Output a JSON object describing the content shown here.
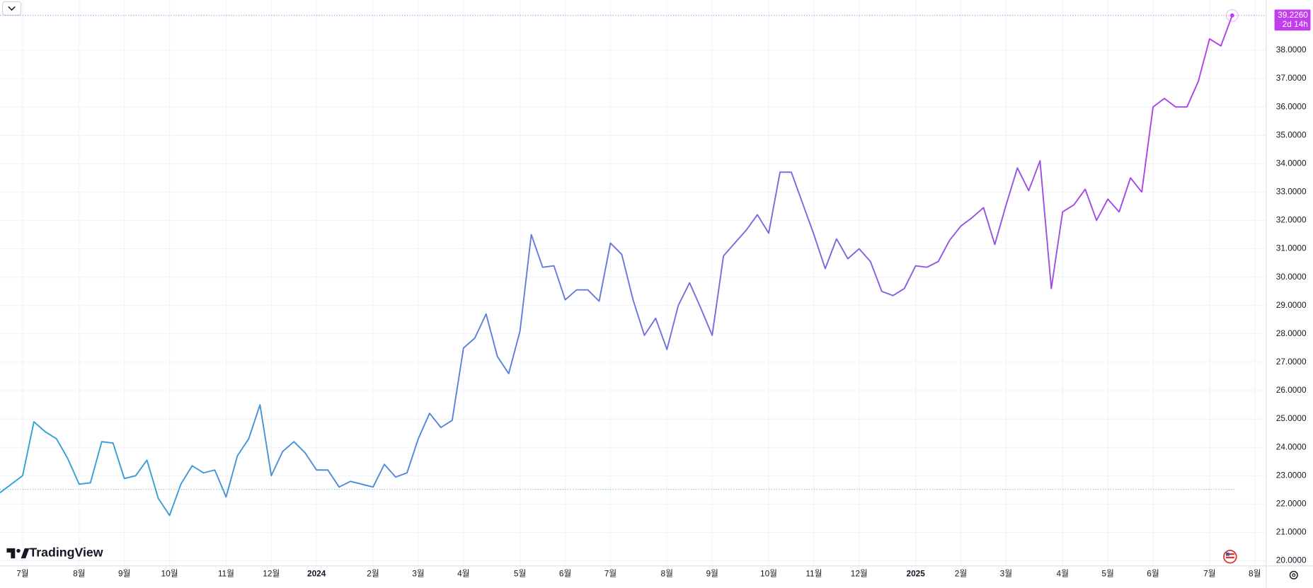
{
  "chart_data": {
    "type": "line",
    "logo": "TradingView",
    "categories": [
      null,
      null,
      "7월",
      null,
      null,
      null,
      null,
      "8월",
      null,
      null,
      null,
      "9월",
      null,
      null,
      null,
      "10월",
      null,
      null,
      null,
      null,
      "11월",
      null,
      null,
      null,
      "12월",
      null,
      null,
      null,
      "2024",
      null,
      null,
      null,
      null,
      "2월",
      null,
      null,
      null,
      "3월",
      null,
      null,
      null,
      "4월",
      null,
      null,
      null,
      null,
      "5월",
      null,
      null,
      null,
      "6월",
      null,
      null,
      null,
      "7월",
      null,
      null,
      null,
      null,
      "8월",
      null,
      null,
      null,
      "9월",
      null,
      null,
      null,
      null,
      "10월",
      null,
      null,
      null,
      "11월",
      null,
      null,
      null,
      "12월",
      null,
      null,
      null,
      null,
      "2025",
      null,
      null,
      null,
      "2월",
      null,
      null,
      null,
      "3월",
      null,
      null,
      null,
      null,
      "4월",
      null,
      null,
      null,
      "5월",
      null,
      null,
      null,
      "6월",
      null,
      null,
      null,
      null,
      "7월",
      null,
      null,
      null,
      "8월"
    ],
    "values": [
      22.4,
      22.7,
      23.0,
      24.9,
      24.55,
      24.3,
      23.6,
      22.7,
      22.75,
      24.2,
      24.15,
      22.9,
      23.0,
      23.55,
      22.2,
      21.6,
      22.7,
      23.35,
      23.1,
      23.2,
      22.25,
      23.7,
      24.3,
      25.5,
      23.0,
      23.85,
      24.2,
      23.8,
      23.2,
      23.2,
      22.6,
      22.8,
      22.7,
      22.6,
      23.4,
      22.95,
      23.1,
      24.3,
      25.2,
      24.7,
      24.95,
      27.5,
      27.85,
      28.7,
      27.2,
      26.6,
      28.1,
      31.5,
      30.35,
      30.4,
      29.2,
      29.55,
      29.55,
      29.15,
      31.2,
      30.8,
      29.2,
      27.95,
      28.55,
      27.45,
      29.0,
      29.8,
      28.9,
      27.95,
      30.75,
      31.2,
      31.65,
      32.2,
      31.55,
      33.7,
      33.7,
      32.6,
      31.5,
      30.3,
      31.35,
      30.65,
      31.0,
      30.55,
      29.5,
      29.35,
      29.6,
      30.4,
      30.35,
      30.55,
      31.3,
      31.8,
      32.1,
      32.45,
      31.15,
      32.55,
      33.85,
      33.05,
      34.1,
      29.6,
      32.3,
      32.55,
      33.1,
      32.0,
      32.75,
      32.3,
      33.5,
      33.0,
      36.0,
      36.3,
      36.0,
      36.0,
      36.9,
      38.4,
      38.15,
      39.226,
      null,
      null
    ],
    "value_labels": [
      null,
      null,
      null,
      null,
      null,
      null,
      null,
      null,
      null,
      null,
      null,
      null,
      null,
      null,
      null,
      null,
      null,
      null,
      null,
      null,
      null,
      null,
      null,
      null,
      null,
      null,
      null,
      null,
      null,
      null,
      null,
      null,
      null,
      null,
      null,
      null,
      null,
      null,
      null,
      null,
      null,
      null,
      null,
      null,
      null,
      null,
      null,
      null,
      null,
      null,
      null,
      null,
      null,
      null,
      null,
      null,
      null,
      null,
      null,
      null,
      null,
      null,
      null,
      null,
      null,
      null,
      null,
      null,
      null,
      null,
      null,
      null,
      null,
      null,
      null,
      null,
      null,
      null,
      null,
      null,
      null,
      null,
      null,
      null,
      null,
      null,
      null,
      null,
      null,
      null,
      null,
      null,
      null,
      null,
      null,
      null,
      null,
      null,
      null,
      null,
      null,
      null,
      null,
      null,
      null,
      null,
      null,
      null,
      null,
      "39.2260",
      null,
      null
    ],
    "countdown": "2d 14h",
    "colors": [
      "#2aa6d3",
      "#6a74dc",
      "#b23ce9"
    ],
    "label_color": "#c53cf0",
    "baseline": 22.52,
    "ylim": [
      19.82,
      39.77
    ],
    "yticks": [
      {
        "value": 20,
        "label": "20.0000"
      },
      {
        "value": 21,
        "label": "21.0000"
      },
      {
        "value": 22,
        "label": "22.0000"
      },
      {
        "value": 23,
        "label": "23.0000"
      },
      {
        "value": 24,
        "label": "24.0000"
      },
      {
        "value": 25,
        "label": "25.0000"
      },
      {
        "value": 26,
        "label": "26.0000"
      },
      {
        "value": 27,
        "label": "27.0000"
      },
      {
        "value": 28,
        "label": "28.0000"
      },
      {
        "value": 29,
        "label": "29.0000"
      },
      {
        "value": 30,
        "label": "30.0000"
      },
      {
        "value": 31,
        "label": "31.0000"
      },
      {
        "value": 32,
        "label": "32.0000"
      },
      {
        "value": 33,
        "label": "33.0000"
      },
      {
        "value": 34,
        "label": "34.0000"
      },
      {
        "value": 35,
        "label": "35.0000"
      },
      {
        "value": 36,
        "label": "36.0000"
      },
      {
        "value": 37,
        "label": "37.0000"
      },
      {
        "value": 38,
        "label": "38.0000"
      }
    ],
    "grid": true
  }
}
